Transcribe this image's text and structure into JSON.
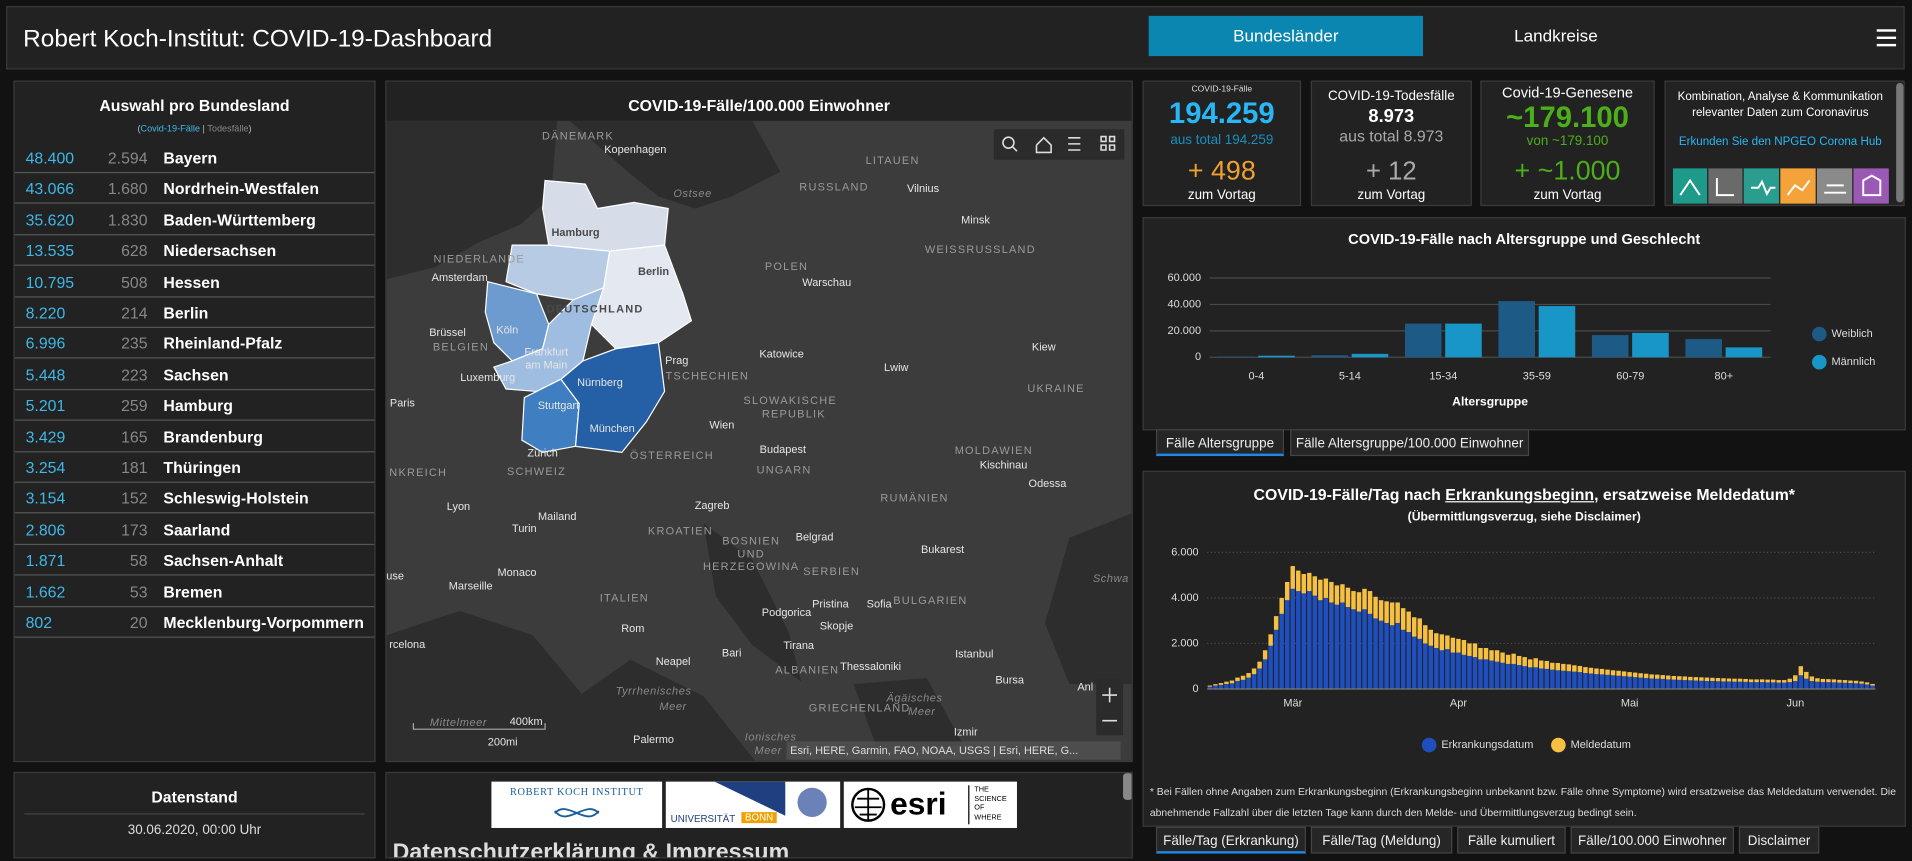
{
  "header": {
    "title": "Robert Koch-Institut: COVID-19-Dashboard",
    "tabs": [
      "Bundesländer",
      "Landkreise"
    ]
  },
  "states": {
    "title": "Auswahl pro Bundesland",
    "subtitle": [
      "(",
      "Covid-19-Fälle",
      "|",
      "Todesfälle",
      ")"
    ],
    "rows": [
      [
        "48.400",
        "2.594",
        "Bayern"
      ],
      [
        "43.066",
        "1.680",
        "Nordrhein-Westfalen"
      ],
      [
        "35.620",
        "1.830",
        "Baden-Württemberg"
      ],
      [
        "13.535",
        "628",
        "Niedersachsen"
      ],
      [
        "10.795",
        "508",
        "Hessen"
      ],
      [
        "8.220",
        "214",
        "Berlin"
      ],
      [
        "6.996",
        "235",
        "Rheinland-Pfalz"
      ],
      [
        "5.448",
        "223",
        "Sachsen"
      ],
      [
        "5.201",
        "259",
        "Hamburg"
      ],
      [
        "3.429",
        "165",
        "Brandenburg"
      ],
      [
        "3.254",
        "181",
        "Thüringen"
      ],
      [
        "3.154",
        "152",
        "Schleswig-Holstein"
      ],
      [
        "2.806",
        "173",
        "Saarland"
      ],
      [
        "1.871",
        "58",
        "Sachsen-Anhalt"
      ],
      [
        "1.662",
        "53",
        "Bremen"
      ],
      [
        "802",
        "20",
        "Mecklenburg-Vorpommern"
      ]
    ]
  },
  "datenstand": {
    "title": "Datenstand",
    "value": "30.06.2020, 00:00 Uhr"
  },
  "map": {
    "title": "COVID-19-Fälle/100.000 Einwohner",
    "labels": [
      "DÄNEMARK",
      "Kopenhagen",
      "Ostsee",
      "LITAUEN",
      "RUSSLAND",
      "Vilnius",
      "Minsk",
      "WEISSRUSSLAND",
      "NIEDERLANDE",
      "Amsterdam",
      "POLEN",
      "Warschau",
      "Hamburg",
      "Berlin",
      "DEUTSCHLAND",
      "Köln",
      "Brüssel",
      "BELGIEN",
      "Frankfurt",
      "am Main",
      "Prag",
      "TSCHECHIEN",
      "Katowice",
      "Lwiw",
      "Kiew",
      "Luxemburg",
      "Nürnberg",
      "UKRAINE",
      "Paris",
      "Stuttgart",
      "SLOWAKISCHE",
      "REPUBLIK",
      "München",
      "Wien",
      "NKREICH",
      "Zürich",
      "SCHWEIZ",
      "ÖSTERREICH",
      "Budapest",
      "UNGARN",
      "MOLDAWIEN",
      "Kischinau",
      "Odessa",
      "RUMÄNIEN",
      "Lyon",
      "Zagreb",
      "Mailand",
      "Turin",
      "KROATIEN",
      "Belgrad",
      "BOSNIEN",
      "UND",
      "HERZEGOWINA",
      "Bukarest",
      "SERBIEN",
      "Monaco",
      "Marseille",
      "Schwa",
      "use",
      "ITALIEN",
      "Sofia",
      "BULGARIEN",
      "Pristina",
      "Podgorica",
      "Skopje",
      "Rom",
      "rcelona",
      "Tirana",
      "Bari",
      "Istanbul",
      "Neapel",
      "ALBANIEN",
      "Thessaloniki",
      "Bursa",
      "Anl",
      "Tyrrhenisches",
      "Meer",
      "Ägäisches",
      "Meer",
      "GRIECHENLAND",
      "Mittelmeer",
      "Izmir",
      "Palermo",
      "Ionisches",
      "Meer"
    ],
    "scale": [
      "400km",
      "200mi"
    ],
    "attribution": "Esri, HERE, Garmin, FAO, NOAA, USGS | Esri, HERE, G..."
  },
  "footer": {
    "heading": "Datenschutzerklärung & Impressum",
    "logos": [
      "ROBERT KOCH INSTITUT",
      "UNIVERSITÄT",
      "BONN",
      "esri",
      "THE",
      "SCIENCE",
      "OF",
      "WHERE"
    ]
  },
  "kpis": [
    {
      "label": "COVID-19-Fälle",
      "value": "194.259",
      "total": "aus total 194.259",
      "delta": "+ 498",
      "note": "zum Vortag"
    },
    {
      "label": "COVID-19-Todesfälle",
      "value": "8.973",
      "total": "aus total 8.973",
      "delta": "+ 12",
      "note": "zum Vortag"
    },
    {
      "label": "Covid-19-Genesene",
      "value": "~179.100",
      "total": "von ~179.100",
      "delta": "+ ~1.000",
      "note": "zum Vortag"
    }
  ],
  "hub": {
    "lines": [
      "Kombination, Analyse & Kommunikation",
      "relevanter Daten zum Coronavirus"
    ],
    "link": "Erkunden Sie den NPGEO Corona Hub"
  },
  "tabs_age": [
    "Fälle Altersgruppe",
    "Fälle Altersgruppe/100.000 Einwohner"
  ],
  "tabs_daily": [
    "Fälle/Tag (Erkrankung)",
    "Fälle/Tag (Meldung)",
    "Fälle kumuliert",
    "Fälle/100.000 Einwohner",
    "Disclaimer"
  ],
  "chart_data": [
    {
      "type": "bar",
      "title": "COVID-19-Fälle nach Altersgruppe und Geschlecht",
      "x_label": "Altersgruppe",
      "categories": [
        "0-4",
        "5-14",
        "15-34",
        "35-59",
        "60-79",
        "80+"
      ],
      "series": [
        {
          "name": "Weiblich",
          "color": "#1d5a86",
          "values": [
            600,
            1500,
            25500,
            42500,
            16800,
            13800
          ]
        },
        {
          "name": "Männlich",
          "color": "#1896c8",
          "values": [
            1200,
            2600,
            25500,
            38800,
            18500,
            7500
          ]
        }
      ],
      "ylim": [
        0,
        60000
      ],
      "yticks": [
        0,
        {
          "value": 20000,
          "label": "20.000"
        },
        {
          "value": 40000,
          "label": "40.000"
        },
        {
          "value": 60000,
          "label": "60.000"
        }
      ],
      "grid": true,
      "legend": "right"
    },
    {
      "type": "stacked_bar",
      "title": [
        "COVID-19-Fälle/Tag nach ",
        "Erkrankungsbeginn",
        ", ersatzweise Meldedatum*"
      ],
      "subtitle": "(Übermittlungsverzug, siehe Disclaimer)",
      "categories": [
        null,
        null,
        null,
        null,
        null,
        null,
        null,
        null,
        null,
        null,
        null,
        null,
        null,
        null,
        null,
        "Mär",
        null,
        null,
        null,
        null,
        null,
        null,
        null,
        null,
        null,
        null,
        null,
        null,
        null,
        null,
        null,
        null,
        null,
        null,
        null,
        null,
        null,
        null,
        null,
        null,
        null,
        null,
        null,
        null,
        null,
        "Apr",
        null,
        null,
        null,
        null,
        null,
        null,
        null,
        null,
        null,
        null,
        null,
        null,
        null,
        null,
        null,
        null,
        null,
        null,
        null,
        null,
        null,
        null,
        null,
        null,
        null,
        null,
        null,
        null,
        null,
        null,
        "Mai",
        null,
        null,
        null,
        null,
        null,
        null,
        null,
        null,
        null,
        null,
        null,
        null,
        null,
        null,
        null,
        null,
        null,
        null,
        null,
        null,
        null,
        null,
        null,
        null,
        null,
        null,
        null,
        null,
        null,
        "Jun",
        null,
        null,
        null,
        null,
        null,
        null,
        null,
        null,
        null,
        null,
        null,
        null,
        null,
        null
      ],
      "series": [
        {
          "name": "Erkrankungsdatum",
          "color": "#1f4fbf",
          "values": [
            100,
            150,
            180,
            220,
            250,
            350,
            400,
            500,
            650,
            900,
            1300,
            1900,
            2600,
            3300,
            3900,
            4400,
            4300,
            4200,
            4300,
            4100,
            3900,
            4000,
            3800,
            3700,
            3800,
            3600,
            3500,
            3400,
            3500,
            3300,
            3100,
            3000,
            2900,
            2800,
            2900,
            2600,
            2500,
            2300,
            2200,
            2000,
            1900,
            1800,
            1700,
            1750,
            1600,
            1600,
            1500,
            1450,
            1400,
            1300,
            1300,
            1250,
            1200,
            1150,
            1100,
            1100,
            1050,
            1000,
            950,
            950,
            900,
            880,
            850,
            820,
            800,
            780,
            760,
            740,
            700,
            680,
            650,
            640,
            620,
            600,
            580,
            560,
            540,
            520,
            500,
            480,
            460,
            450,
            440,
            420,
            410,
            400,
            390,
            380,
            370,
            360,
            350,
            350,
            340,
            330,
            330,
            320,
            320,
            310,
            300,
            300,
            300,
            290,
            290,
            280,
            280,
            300,
            350,
            600,
            450,
            350,
            320,
            300,
            300,
            290,
            280,
            270,
            260,
            250,
            230,
            200,
            150
          ]
        },
        {
          "name": "Meldedatum",
          "color": "#f6c042",
          "values": [
            50,
            60,
            80,
            100,
            120,
            150,
            180,
            200,
            250,
            300,
            400,
            500,
            600,
            700,
            800,
            1000,
            900,
            850,
            800,
            850,
            900,
            850,
            900,
            850,
            800,
            850,
            800,
            850,
            900,
            1000,
            950,
            900,
            950,
            1000,
            900,
            950,
            900,
            850,
            900,
            800,
            700,
            650,
            700,
            600,
            650,
            600,
            650,
            550,
            600,
            500,
            500,
            450,
            500,
            450,
            400,
            450,
            400,
            400,
            350,
            400,
            350,
            350,
            300,
            320,
            300,
            300,
            280,
            270,
            260,
            250,
            250,
            240,
            230,
            220,
            220,
            210,
            200,
            200,
            190,
            190,
            180,
            180,
            170,
            170,
            160,
            160,
            160,
            150,
            150,
            150,
            150,
            140,
            140,
            140,
            130,
            130,
            130,
            130,
            120,
            120,
            120,
            120,
            120,
            110,
            110,
            150,
            250,
            400,
            300,
            200,
            150,
            140,
            130,
            130,
            120,
            120,
            110,
            110,
            100,
            90,
            70
          ]
        }
      ],
      "ylim": [
        0,
        6000
      ],
      "yticks": [
        0,
        {
          "value": 2000,
          "label": "2.000"
        },
        {
          "value": 4000,
          "label": "4.000"
        },
        {
          "value": 6000,
          "label": "6.000"
        }
      ],
      "grid": true,
      "legend": "bottom",
      "footnote": [
        "* Bei Fällen ohne Angaben zum Erkrankungsbeginn (Erkrankungsbeginn unbekannt bzw. Fälle ohne Symptome) wird ersatzweise das Meldedatum verwendet. Die",
        "abnehmende Fallzahl über die letzten Tage kann durch den Melde- und Übermittlungsverzug bedingt sein."
      ]
    }
  ]
}
